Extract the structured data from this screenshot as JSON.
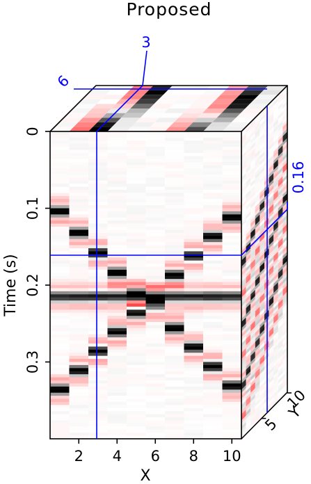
{
  "chart_data": {
    "type": "heatmap",
    "title": "Proposed",
    "xlabel": "X",
    "ylabel": "Time (s)",
    "zlabel": "Y",
    "x_range": [
      0.5,
      10.5
    ],
    "t_range": [
      0,
      0.4
    ],
    "y_range": [
      1,
      10
    ],
    "x_ticks": [
      "2",
      "4",
      "6",
      "8",
      "10"
    ],
    "t_ticks": [
      "0",
      "0.1",
      "0.2",
      "0.3"
    ],
    "y_ticks": [
      "5",
      "10"
    ],
    "slice_labels": {
      "x": "3",
      "y": "6",
      "t": "0.16"
    },
    "slices": {
      "x": 3,
      "y": 6,
      "t": 0.16
    },
    "colormap": [
      "#000000",
      "#ffffff",
      "#ff0000"
    ],
    "events": [
      {
        "x": 1,
        "t": 0.104
      },
      {
        "x": 2,
        "t": 0.132
      },
      {
        "x": 3,
        "t": 0.158
      },
      {
        "x": 4,
        "t": 0.184
      },
      {
        "x": 5,
        "t": 0.211
      },
      {
        "x": 6,
        "t": 0.217
      },
      {
        "x": 7,
        "t": 0.187
      },
      {
        "x": 8,
        "t": 0.162
      },
      {
        "x": 9,
        "t": 0.137
      },
      {
        "x": 10,
        "t": 0.112
      },
      {
        "x": 1,
        "t": 0.336
      },
      {
        "x": 2,
        "t": 0.311
      },
      {
        "x": 3,
        "t": 0.286
      },
      {
        "x": 4,
        "t": 0.261
      },
      {
        "x": 5,
        "t": 0.236
      },
      {
        "x": 6,
        "t": 0.228
      },
      {
        "x": 7,
        "t": 0.256
      },
      {
        "x": 8,
        "t": 0.281
      },
      {
        "x": 9,
        "t": 0.306
      },
      {
        "x": 10,
        "t": 0.331
      }
    ],
    "flat_event_t": 0.215
  }
}
